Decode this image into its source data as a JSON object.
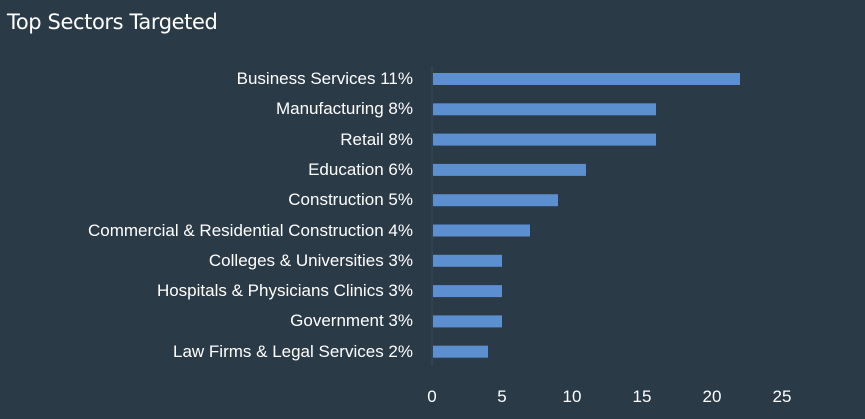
{
  "chart_title": "Top Sectors Targeted",
  "colors": {
    "background": "#2b3a47",
    "bar": "#5b8fd0",
    "text": "#ffffff"
  },
  "chart_data": {
    "type": "bar",
    "orientation": "horizontal",
    "title": "Top Sectors Targeted",
    "categories": [
      "Business Services 11%",
      "Manufacturing 8%",
      "Retail 8%",
      "Education 6%",
      "Construction 5%",
      "Commercial & Residential Construction 4%",
      "Colleges & Universities 3%",
      "Hospitals & Physicians Clinics 3%",
      "Government 3%",
      "Law Firms & Legal Services 2%"
    ],
    "values": [
      22,
      16,
      16,
      11,
      9,
      7,
      5,
      5,
      5,
      4
    ],
    "xlim": [
      0,
      25
    ],
    "xticks": [
      "0",
      "5",
      "10",
      "15",
      "20",
      "25"
    ],
    "xlabel": "",
    "ylabel": "",
    "grid": false,
    "legend": "none"
  }
}
